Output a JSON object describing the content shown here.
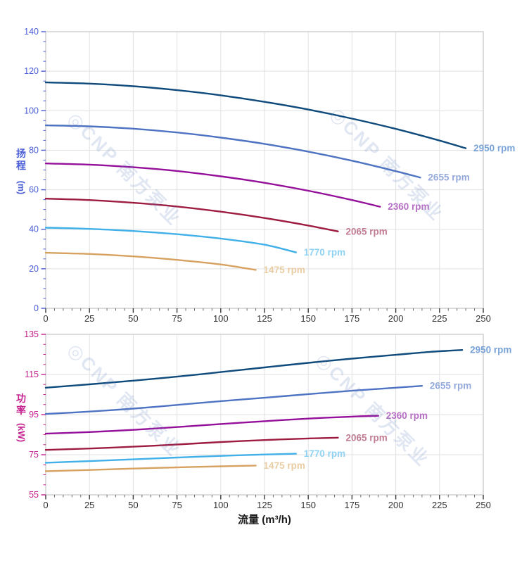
{
  "page": {
    "background": "#ffffff"
  },
  "watermark": {
    "text": "◎CNP 南方泵业",
    "color": "rgba(100,130,190,0.20)"
  },
  "chart_data": [
    {
      "type": "line",
      "title": "",
      "ylabel": "扬程 (m)",
      "ylabel_char_1": "扬",
      "ylabel_char_2": "程",
      "ylabel_unit": "(m)",
      "xlabel": "流量 (m³/h)",
      "xlim": [
        0,
        250
      ],
      "ylim": [
        0,
        140
      ],
      "x_major_ticks": [
        0,
        25,
        50,
        75,
        100,
        125,
        150,
        175,
        200,
        225,
        250
      ],
      "y_major_ticks": [
        0,
        20,
        40,
        60,
        80,
        100,
        120,
        140
      ],
      "x_minor_step": 5,
      "y_minor_step": 5,
      "grid": true,
      "legend": "line-end-labels",
      "axis_color": "#4a5cd8",
      "x_tick_label_color": "#333333",
      "series": [
        {
          "name": "2950 rpm",
          "color": "#0e4a7b",
          "label_color": "#79a3d7",
          "points": [
            [
              0,
              114.3
            ],
            [
              25,
              113.7
            ],
            [
              50,
              112.4
            ],
            [
              75,
              110.4
            ],
            [
              100,
              107.8
            ],
            [
              125,
              104.5
            ],
            [
              150,
              100.6
            ],
            [
              175,
              96.0
            ],
            [
              200,
              90.8
            ],
            [
              225,
              84.9
            ],
            [
              240,
              81.0
            ]
          ]
        },
        {
          "name": "2655 rpm",
          "color": "#4e73c2",
          "label_color": "#93a9dc",
          "points": [
            [
              0,
              92.6
            ],
            [
              25,
              92.1
            ],
            [
              50,
              90.9
            ],
            [
              75,
              89.0
            ],
            [
              100,
              86.4
            ],
            [
              125,
              83.2
            ],
            [
              150,
              79.3
            ],
            [
              175,
              74.7
            ],
            [
              200,
              69.4
            ],
            [
              214,
              66.2
            ]
          ]
        },
        {
          "name": "2360 rpm",
          "color": "#940f9a",
          "label_color": "#b66fc4",
          "points": [
            [
              0,
              73.3
            ],
            [
              25,
              72.7
            ],
            [
              50,
              71.4
            ],
            [
              75,
              69.5
            ],
            [
              100,
              66.8
            ],
            [
              125,
              63.5
            ],
            [
              150,
              59.5
            ],
            [
              175,
              54.8
            ],
            [
              191,
              51.4
            ]
          ]
        },
        {
          "name": "2065 rpm",
          "color": "#9e1c40",
          "label_color": "#c17b93",
          "points": [
            [
              0,
              55.5
            ],
            [
              25,
              54.8
            ],
            [
              50,
              53.4
            ],
            [
              75,
              51.5
            ],
            [
              100,
              48.9
            ],
            [
              125,
              45.7
            ],
            [
              150,
              41.9
            ],
            [
              167,
              38.9
            ]
          ]
        },
        {
          "name": "1770 rpm",
          "color": "#41b0e9",
          "label_color": "#8fd2f3",
          "points": [
            [
              0,
              40.8
            ],
            [
              25,
              40.2
            ],
            [
              50,
              39.1
            ],
            [
              75,
              37.5
            ],
            [
              100,
              35.3
            ],
            [
              125,
              32.2
            ],
            [
              143,
              28.3
            ]
          ]
        },
        {
          "name": "1475 rpm",
          "color": "#d7a160",
          "label_color": "#e9cda2",
          "points": [
            [
              0,
              28.1
            ],
            [
              25,
              27.5
            ],
            [
              50,
              26.3
            ],
            [
              75,
              24.5
            ],
            [
              100,
              22.2
            ],
            [
              120,
              19.4
            ]
          ]
        }
      ]
    },
    {
      "type": "line",
      "title": "",
      "ylabel": "功率 (kW)",
      "ylabel_char_1": "功",
      "ylabel_char_2": "率",
      "ylabel_unit": "(kW)",
      "xlabel": "流量 (m³/h)",
      "xlim": [
        0,
        250
      ],
      "ylim": [
        55,
        135
      ],
      "x_major_ticks": [
        0,
        25,
        50,
        75,
        100,
        125,
        150,
        175,
        200,
        225,
        250
      ],
      "y_major_ticks": [
        55,
        75,
        95,
        115,
        135
      ],
      "x_minor_step": 5,
      "y_minor_step": 5,
      "grid": true,
      "legend": "line-end-labels",
      "axis_color": "#c6208f",
      "x_tick_label_color": "#333333",
      "series": [
        {
          "name": "2950 rpm",
          "color": "#0e4a7b",
          "label_color": "#79a3d7",
          "points": [
            [
              0,
              108.4
            ],
            [
              25,
              110.1
            ],
            [
              50,
              111.9
            ],
            [
              75,
              113.9
            ],
            [
              100,
              116.2
            ],
            [
              125,
              118.5
            ],
            [
              150,
              120.8
            ],
            [
              175,
              122.9
            ],
            [
              200,
              124.8
            ],
            [
              220,
              126.3
            ],
            [
              238,
              127.2
            ]
          ]
        },
        {
          "name": "2655 rpm",
          "color": "#4e73c2",
          "label_color": "#93a9dc",
          "points": [
            [
              0,
              95.3
            ],
            [
              25,
              96.5
            ],
            [
              50,
              98.0
            ],
            [
              75,
              99.8
            ],
            [
              100,
              101.7
            ],
            [
              125,
              103.4
            ],
            [
              150,
              105.2
            ],
            [
              175,
              106.9
            ],
            [
              200,
              108.4
            ],
            [
              215,
              109.3
            ]
          ]
        },
        {
          "name": "2360 rpm",
          "color": "#940f9a",
          "label_color": "#b66fc4",
          "points": [
            [
              0,
              85.5
            ],
            [
              25,
              86.3
            ],
            [
              50,
              87.4
            ],
            [
              75,
              88.8
            ],
            [
              100,
              90.3
            ],
            [
              125,
              91.7
            ],
            [
              150,
              93.0
            ],
            [
              175,
              94.0
            ],
            [
              190,
              94.4
            ]
          ]
        },
        {
          "name": "2065 rpm",
          "color": "#9e1c40",
          "label_color": "#c17b93",
          "points": [
            [
              0,
              77.4
            ],
            [
              25,
              78.1
            ],
            [
              50,
              79.0
            ],
            [
              75,
              80.1
            ],
            [
              100,
              81.3
            ],
            [
              125,
              82.3
            ],
            [
              150,
              83.1
            ],
            [
              167,
              83.5
            ]
          ]
        },
        {
          "name": "1770 rpm",
          "color": "#41b0e9",
          "label_color": "#8fd2f3",
          "points": [
            [
              0,
              71.0
            ],
            [
              25,
              71.8
            ],
            [
              50,
              72.7
            ],
            [
              75,
              73.6
            ],
            [
              100,
              74.4
            ],
            [
              125,
              75.1
            ],
            [
              143,
              75.5
            ]
          ]
        },
        {
          "name": "1475 rpm",
          "color": "#d7a160",
          "label_color": "#e9cda2",
          "points": [
            [
              0,
              66.8
            ],
            [
              25,
              67.4
            ],
            [
              50,
              68.1
            ],
            [
              75,
              68.7
            ],
            [
              100,
              69.2
            ],
            [
              120,
              69.6
            ]
          ]
        }
      ]
    }
  ]
}
